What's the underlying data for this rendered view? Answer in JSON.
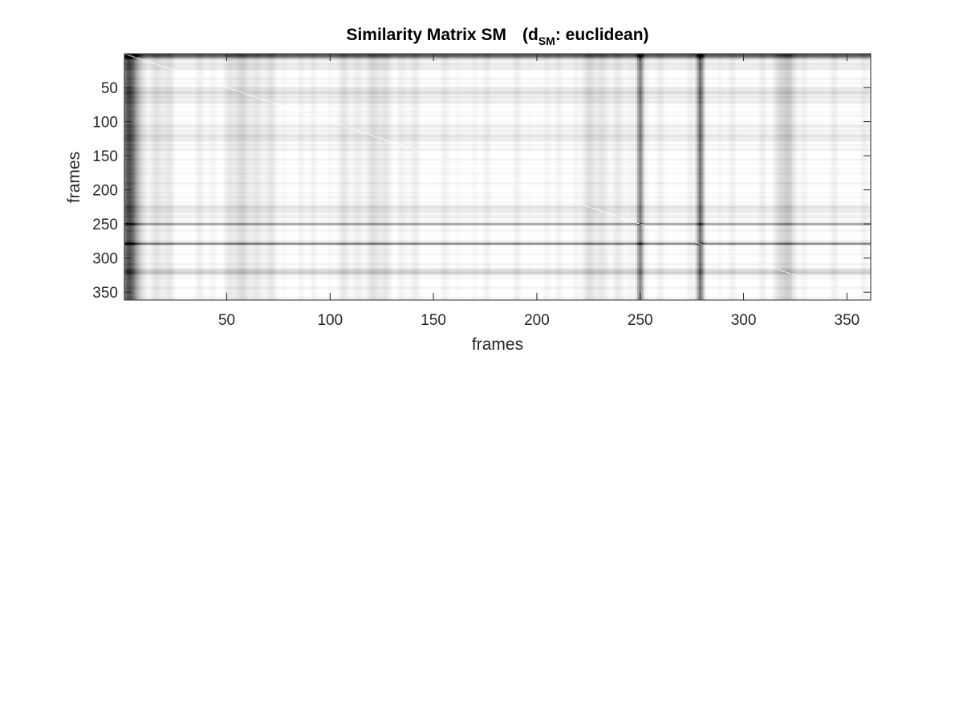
{
  "chart_data": {
    "type": "heatmap",
    "title": {
      "main": "Similarity Matrix SM",
      "open": "(d",
      "subscript": "SM",
      "rest": ": euclidean)"
    },
    "xlabel": "frames",
    "ylabel": "frames",
    "xlim": [
      1,
      361
    ],
    "ylim": [
      1,
      361
    ],
    "y_reversed": true,
    "xticks": [
      50,
      100,
      150,
      200,
      250,
      300,
      350
    ],
    "yticks": [
      50,
      100,
      150,
      200,
      250,
      300,
      350
    ],
    "colormap": "gray",
    "dark_frames": [
      {
        "frame": 3,
        "strength": 0.88,
        "width": 4
      },
      {
        "frame": 250,
        "strength": 0.72,
        "width": 1.6
      },
      {
        "frame": 279,
        "strength": 0.72,
        "width": 1.6
      },
      {
        "frame": 320,
        "strength": 0.3,
        "width": 4
      },
      {
        "frame": 15,
        "strength": 0.12,
        "width": 8
      },
      {
        "frame": 60,
        "strength": 0.14,
        "width": 12
      },
      {
        "frame": 120,
        "strength": 0.1,
        "width": 16
      },
      {
        "frame": 230,
        "strength": 0.12,
        "width": 10
      }
    ],
    "grid": false,
    "legend": "none"
  }
}
